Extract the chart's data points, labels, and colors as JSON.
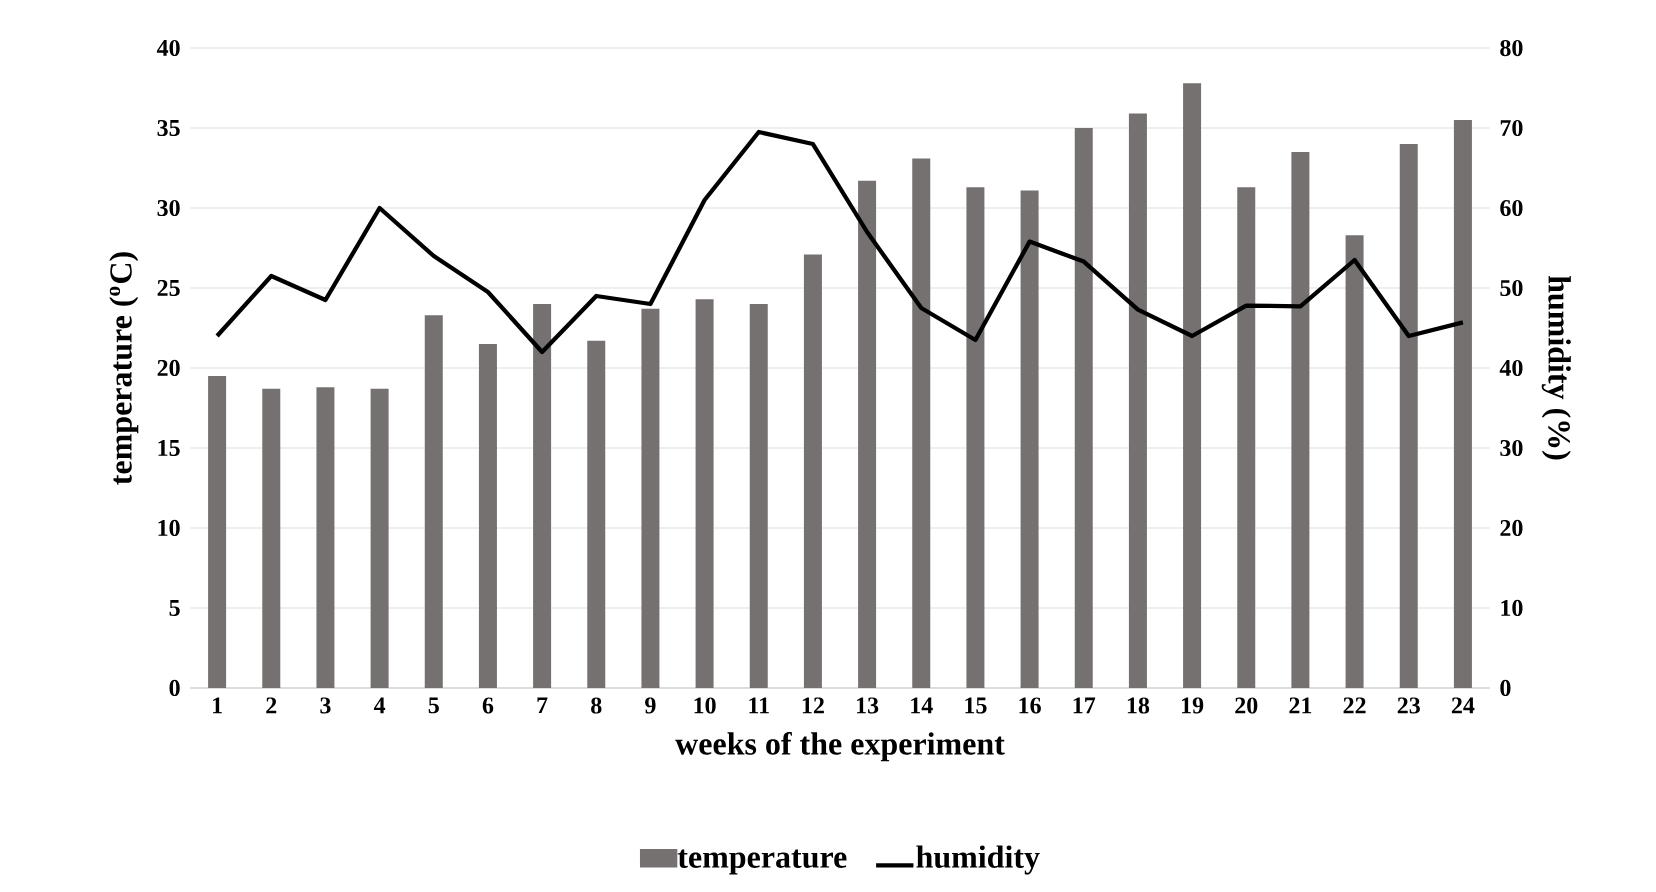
{
  "chart_data": {
    "type": "bar",
    "xlabel": "weeks of the experiment",
    "ylabel": "temperature ($^{o}$C)",
    "y2label": "humidity (%)",
    "categories": [
      "1",
      "2",
      "3",
      "4",
      "5",
      "6",
      "7",
      "8",
      "9",
      "10",
      "11",
      "12",
      "13",
      "14",
      "15",
      "16",
      "17",
      "18",
      "19",
      "20",
      "21",
      "22",
      "23",
      "24"
    ],
    "series": [
      {
        "name": "temperature",
        "color": "#767171",
        "values": [
          19.5,
          18.7,
          18.8,
          18.7,
          23.3,
          21.5,
          24,
          21.7,
          23.7,
          24.3,
          24,
          27.1,
          31.7,
          33.1,
          31.3,
          31.1,
          35,
          35.9,
          37.8,
          31.3,
          33.5,
          28.3,
          34,
          35.5
        ]
      },
      {
        "name": "humidity",
        "type": "line",
        "axis": "y2",
        "color": "#000000",
        "values": [
          44,
          51.5,
          48.5,
          60,
          54,
          49.5,
          42,
          49,
          48,
          61,
          69.5,
          68,
          57,
          47.5,
          43.5,
          55.8,
          53.3,
          47.3,
          44,
          47.8,
          47.7,
          53.5,
          44,
          45.7
        ]
      }
    ],
    "ylim": [
      0,
      40
    ],
    "yticks": [
      0,
      5,
      10,
      15,
      20,
      25,
      30,
      35,
      40
    ],
    "y2lim": [
      0,
      80
    ],
    "y2ticks": [
      0,
      10,
      20,
      30,
      40,
      50,
      60,
      70,
      80
    ],
    "grid": "y",
    "legend": "bottom",
    "marker": "none",
    "line_style": "solid"
  }
}
